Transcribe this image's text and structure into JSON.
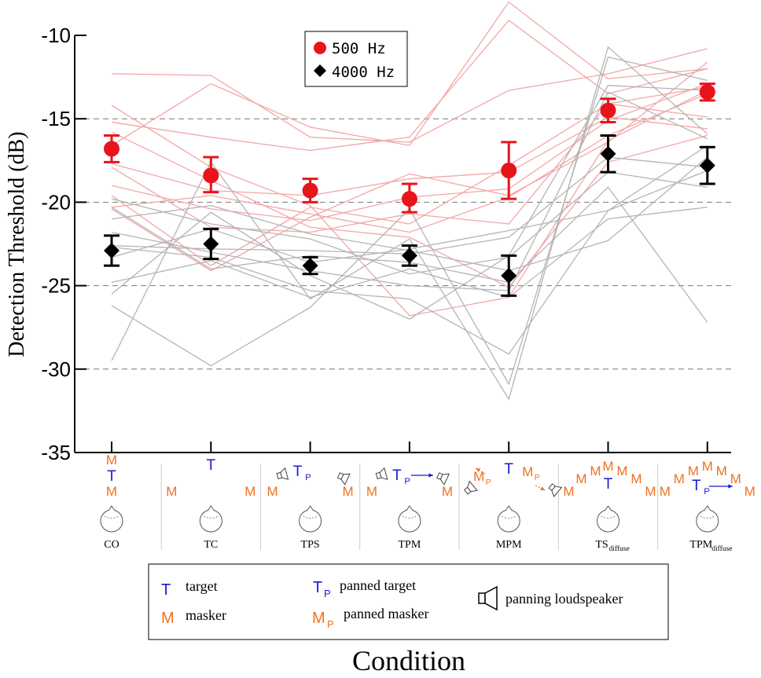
{
  "chart_data": {
    "type": "scatter",
    "ylabel": "Detection Threshold (dB)",
    "xlabel": "Condition",
    "ylim": [
      -35,
      -10
    ],
    "yticks": [
      "-10",
      "-15",
      "-20",
      "-25",
      "-30",
      "-35"
    ],
    "ytick_values": [
      -10,
      -15,
      -20,
      -25,
      -30,
      -35
    ],
    "grid_values": [
      -15,
      -20,
      -25,
      -30
    ],
    "categories": [
      "CO",
      "TC",
      "TPS",
      "TPM",
      "MPM",
      "TS",
      "TPM"
    ],
    "category_subscripts": [
      "",
      "",
      "",
      "",
      "",
      "diffuse",
      "diffuse"
    ],
    "legend": {
      "position": "top-center",
      "entries": [
        {
          "label": "500 Hz",
          "color": "#e8141c",
          "marker": "circle"
        },
        {
          "label": "4000 Hz",
          "color": "#000000",
          "marker": "diamond"
        }
      ]
    },
    "series": [
      {
        "name": "500 Hz",
        "color": "#e8141c",
        "values": [
          -16.8,
          -18.4,
          -19.3,
          -19.8,
          -18.1,
          -14.5,
          -13.4
        ],
        "err_low": [
          -17.6,
          -19.4,
          -20.0,
          -20.6,
          -19.8,
          -15.2,
          -13.9
        ],
        "err_high": [
          -16.0,
          -17.3,
          -18.6,
          -18.9,
          -16.4,
          -13.8,
          -12.9
        ],
        "subjects": [
          [
            -12.3,
            -12.4,
            -16.1,
            -16.4,
            -13.3,
            -12.3,
            -10.8
          ],
          [
            -14.2,
            -17.9,
            -20.2,
            -26.8,
            -25.7,
            -16.3,
            -13.3
          ],
          [
            -15.2,
            -16.1,
            -16.9,
            -16.1,
            -9.1,
            -13.5,
            -12.0
          ],
          [
            -16.6,
            -12.9,
            -15.5,
            -16.6,
            -8.0,
            -12.6,
            -12.0
          ],
          [
            -17.7,
            -19.3,
            -19.6,
            -18.6,
            -18.2,
            -14.9,
            -15.6
          ],
          [
            -19.0,
            -20.4,
            -21.1,
            -19.7,
            -19.2,
            -15.1,
            -12.9
          ],
          [
            -19.6,
            -23.8,
            -20.3,
            -21.3,
            -17.8,
            -14.1,
            -13.1
          ],
          [
            -20.3,
            -19.6,
            -20.7,
            -21.8,
            -19.7,
            -16.0,
            -13.5
          ],
          [
            -15.8,
            -18.7,
            -21.5,
            -22.1,
            -25.1,
            -17.6,
            -16.0
          ],
          [
            -17.9,
            -21.5,
            -21.8,
            -20.7,
            -21.3,
            -14.1,
            -14.9
          ],
          [
            -20.4,
            -24.1,
            -20.9,
            -18.3,
            -19.6,
            -16.4,
            -11.6
          ]
        ]
      },
      {
        "name": "4000 Hz",
        "color": "#000000",
        "values": [
          -22.9,
          -22.5,
          -23.8,
          -23.2,
          -24.4,
          -17.1,
          -17.8
        ],
        "err_low": [
          -23.8,
          -23.4,
          -24.3,
          -23.8,
          -25.6,
          -18.2,
          -18.9
        ],
        "err_high": [
          -22.0,
          -21.6,
          -23.3,
          -22.6,
          -23.2,
          -16.0,
          -16.7
        ],
        "subjects": [
          [
            -29.5,
            -17.6,
            -25.8,
            -22.2,
            -31.8,
            -10.7,
            -15.9
          ],
          [
            -26.2,
            -29.8,
            -26.3,
            -20.4,
            -30.9,
            -11.3,
            -12.7
          ],
          [
            -25.5,
            -20.6,
            -24.4,
            -27.0,
            -23.2,
            -13.0,
            -13.3
          ],
          [
            -21.8,
            -23.0,
            -24.1,
            -25.0,
            -25.3,
            -13.4,
            -16.2
          ],
          [
            -22.6,
            -22.8,
            -22.9,
            -23.1,
            -22.1,
            -17.3,
            -17.9
          ],
          [
            -19.8,
            -21.3,
            -22.2,
            -24.3,
            -23.3,
            -18.2,
            -19.1
          ],
          [
            -20.3,
            -24.0,
            -23.2,
            -23.6,
            -24.8,
            -19.1,
            -27.2
          ],
          [
            -22.7,
            -23.3,
            -25.3,
            -25.8,
            -29.1,
            -20.5,
            -18.1
          ],
          [
            -24.8,
            -23.5,
            -25.7,
            -24.0,
            -25.7,
            -21.0,
            -20.3
          ],
          [
            -23.3,
            -21.6,
            -23.6,
            -22.8,
            -21.7,
            -20.5,
            -16.6
          ],
          [
            -21.0,
            -20.2,
            -21.9,
            -22.9,
            -24.1,
            -22.3,
            -17.3
          ]
        ]
      }
    ]
  },
  "schematic": {
    "target_letter": "T",
    "masker_letter": "M",
    "panned_subscript": "P",
    "target_color": "#1a1ad6",
    "masker_color": "#f07020"
  },
  "key": {
    "target": "target",
    "masker": "masker",
    "panned_target": "panned target",
    "panned_masker": "panned masker",
    "loudspeaker": "panning loudspeaker"
  }
}
